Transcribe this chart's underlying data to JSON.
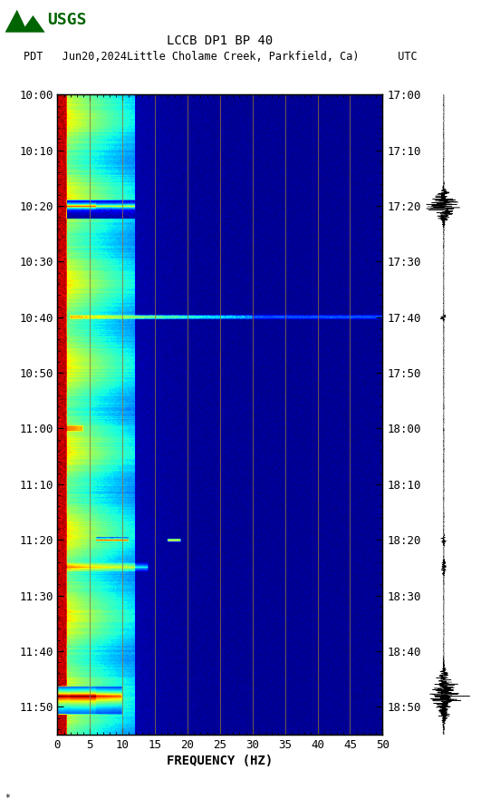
{
  "title_line1": "LCCB DP1 BP 40",
  "title_line2": "PDT   Jun20,2024Little Cholame Creek, Parkfield, Ca)      UTC",
  "xlabel": "FREQUENCY (HZ)",
  "freq_min": 0,
  "freq_max": 50,
  "freq_ticks": [
    0,
    5,
    10,
    15,
    20,
    25,
    30,
    35,
    40,
    45,
    50
  ],
  "time_start_pdt": "10:00",
  "time_end_pdt": "11:55",
  "time_start_utc": "17:00",
  "time_end_utc": "18:55",
  "left_yticks_labels": [
    "10:00",
    "10:10",
    "10:20",
    "10:30",
    "10:40",
    "10:50",
    "11:00",
    "11:10",
    "11:20",
    "11:30",
    "11:40",
    "11:50"
  ],
  "right_yticks_labels": [
    "17:00",
    "17:10",
    "17:20",
    "17:30",
    "17:40",
    "17:50",
    "18:00",
    "18:10",
    "18:20",
    "18:30",
    "18:40",
    "18:50"
  ],
  "background_color": "#ffffff",
  "vline_color": "#8B7040",
  "vline_positions": [
    5,
    10,
    15,
    20,
    25,
    30,
    35,
    40,
    45
  ],
  "colormap": "jet",
  "usgs_logo_color": "#006400",
  "fig_width": 5.52,
  "fig_height": 8.92
}
